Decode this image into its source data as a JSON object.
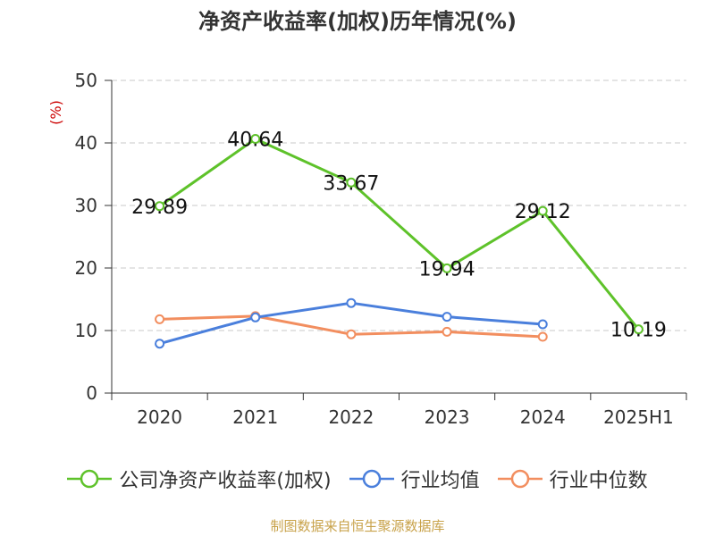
{
  "chart_data": {
    "type": "line",
    "title": "净资产收益率(加权)历年情况(%)",
    "ylabel": "(%)",
    "ylim": [
      0,
      50
    ],
    "yticks": [
      0,
      10,
      20,
      30,
      40,
      50
    ],
    "categories": [
      "2020",
      "2021",
      "2022",
      "2023",
      "2024",
      "2025H1"
    ],
    "grid": true,
    "legend_position": "bottom",
    "series": [
      {
        "name": "公司净资产收益率(加权)",
        "color": "#5ec22a",
        "values": [
          29.89,
          40.64,
          33.67,
          19.94,
          29.12,
          10.19
        ],
        "labels": [
          "29.89",
          "40.64",
          "33.67",
          "19.94",
          "29.12",
          "10.19"
        ]
      },
      {
        "name": "行业均值",
        "color": "#4a7fdc",
        "values": [
          7.9,
          12.1,
          14.4,
          12.2,
          11.0,
          null
        ]
      },
      {
        "name": "行业中位数",
        "color": "#f28e5f",
        "values": [
          11.8,
          12.3,
          9.4,
          9.8,
          9.0,
          null
        ]
      }
    ]
  },
  "source": "制图数据来自恒生聚源数据库"
}
